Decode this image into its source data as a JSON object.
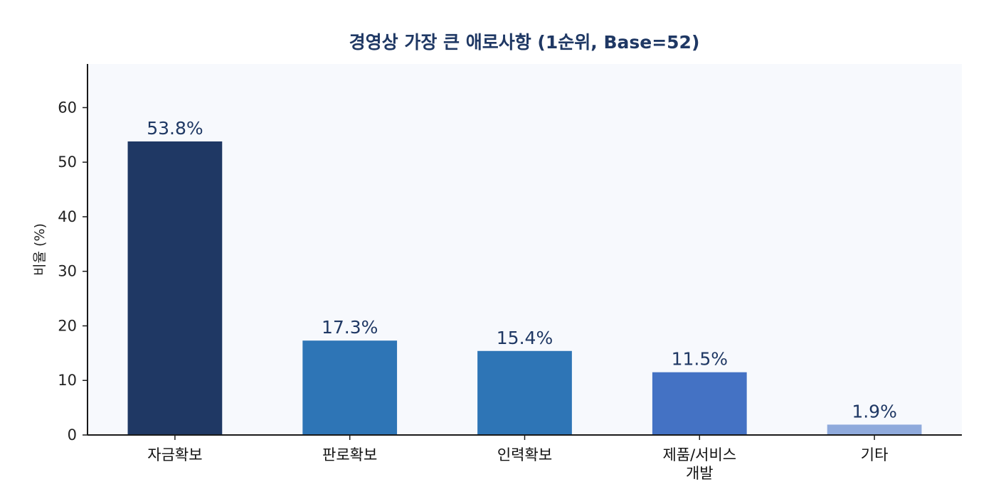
{
  "chart_data": {
    "type": "bar",
    "title": "경영상 가장 큰 애로사항 (1순위, Base=52)",
    "xlabel": "",
    "ylabel": "비율 (%)",
    "ylim": [
      0,
      68
    ],
    "yticks": [
      0,
      10,
      20,
      30,
      40,
      50,
      60
    ],
    "grid": false,
    "categories": [
      [
        "자금확보"
      ],
      [
        "판로확보"
      ],
      [
        "인력확보"
      ],
      [
        "제품/서비스",
        "개발"
      ],
      [
        "기타"
      ]
    ],
    "values": [
      53.8,
      17.3,
      15.4,
      11.5,
      1.9
    ],
    "data_labels": [
      "53.8%",
      "17.3%",
      "15.4%",
      "11.5%",
      "1.9%"
    ],
    "colors": [
      "#1f3864",
      "#2e75b6",
      "#2e75b6",
      "#4472c4",
      "#8faadc"
    ],
    "plot_background": "#f7f9fd",
    "axis_color": "#1a1a1a"
  }
}
